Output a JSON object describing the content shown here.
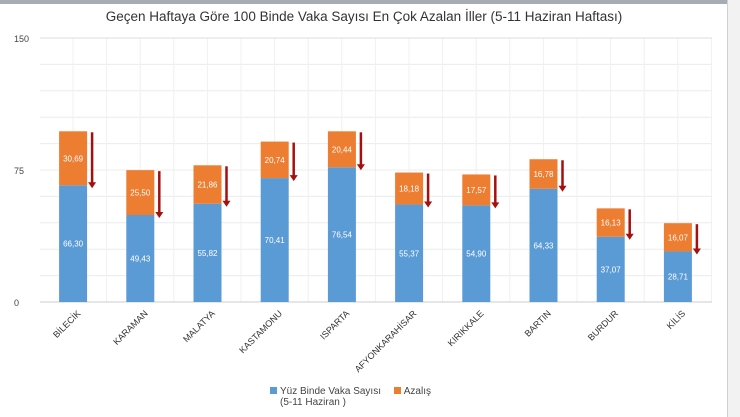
{
  "chart_data": {
    "type": "bar",
    "stacked": true,
    "title": "Geçen Haftaya Göre 100 Binde Vaka Sayısı En Çok Azalan İller (5-11 Haziran Haftası)",
    "categories": [
      "BİLECİK",
      "KARAMAN",
      "MALATYA",
      "KASTAMONU",
      "ISPARTA",
      "AFYONKARAHİSAR",
      "KIRIKKALE",
      "BARTIN",
      "BURDUR",
      "KİLİS"
    ],
    "series": [
      {
        "name": "Yüz Binde Vaka Sayısı (5-11 Haziran )",
        "legend_line1": "Yüz Binde Vaka Sayısı",
        "legend_line2": "(5-11 Haziran )",
        "color": "#5b9bd5",
        "values": [
          66.3,
          49.43,
          55.82,
          70.41,
          76.54,
          55.37,
          54.9,
          64.33,
          37.07,
          28.71
        ],
        "labels": [
          "66,30",
          "49,43",
          "55,82",
          "70,41",
          "76,54",
          "55,37",
          "54,90",
          "64,33",
          "37,07",
          "28,71"
        ]
      },
      {
        "name": "Azalış",
        "color": "#ed7d31",
        "values": [
          30.69,
          25.5,
          21.86,
          20.74,
          20.44,
          18.18,
          17.57,
          16.78,
          16.13,
          16.07
        ],
        "labels": [
          "30,69",
          "25,50",
          "21,86",
          "20,74",
          "20,44",
          "18,18",
          "17,57",
          "16,78",
          "16,13",
          "16,07"
        ]
      }
    ],
    "yticks": [
      "0",
      "75",
      "150"
    ],
    "ylim": [
      0,
      150
    ],
    "grid": true,
    "legend_position": "bottom",
    "arrow_color": "#a50f0f"
  }
}
